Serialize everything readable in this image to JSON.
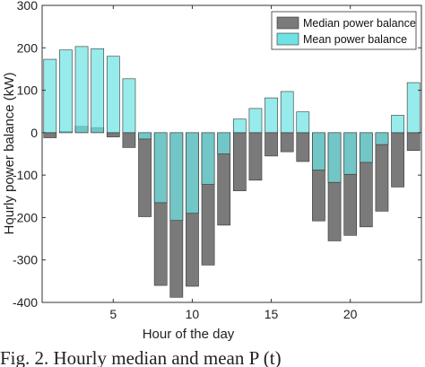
{
  "chart_data": {
    "type": "bar",
    "title": "",
    "xlabel": "Hour of the day",
    "ylabel": "Hourly power balance (kW)",
    "ylim": [
      -400,
      300
    ],
    "xlim": [
      0.5,
      24.5
    ],
    "yticks": [
      "300",
      "200",
      "100",
      "0",
      "-100",
      "-200",
      "-300",
      "-400"
    ],
    "xticks": [
      "5",
      "10",
      "15",
      "20"
    ],
    "grid": false,
    "legend_position": "top-right",
    "categories": [
      1,
      2,
      3,
      4,
      5,
      6,
      7,
      8,
      9,
      10,
      11,
      12,
      13,
      14,
      15,
      16,
      17,
      18,
      19,
      20,
      21,
      22,
      23,
      24
    ],
    "series": [
      {
        "name": "Median power balance",
        "color": "#7a7a7a",
        "values": [
          -12,
          3,
          15,
          12,
          -10,
          -35,
          -198,
          -360,
          -388,
          -362,
          -312,
          -218,
          -137,
          -112,
          -55,
          -45,
          -68,
          -208,
          -255,
          -242,
          -222,
          -185,
          -128,
          -42
        ]
      },
      {
        "name": "Mean power balance",
        "color": "#6fe3e3",
        "values": [
          173,
          195,
          203,
          198,
          180,
          127,
          -15,
          -165,
          -207,
          -190,
          -122,
          -50,
          32,
          57,
          82,
          97,
          49,
          -88,
          -117,
          -98,
          -70,
          -28,
          41,
          118
        ]
      }
    ]
  },
  "caption": "Fig. 2. Hourly median and mean P    (t)"
}
